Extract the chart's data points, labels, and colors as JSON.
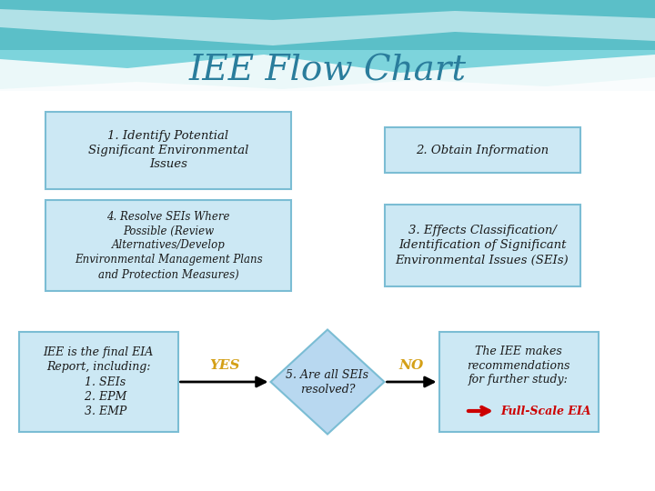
{
  "title": "IEE Flow Chart",
  "title_color": "#2a7d9c",
  "title_fontsize": 28,
  "bg_color": "#ffffff",
  "box_bg": "#cce8f4",
  "box_border": "#7bbdd4",
  "diamond_bg": "#b8d8f0",
  "diamond_border": "#7bbdd4",
  "text_color": "#1a1a1a",
  "yes_color": "#d4a017",
  "no_color": "#d4a017",
  "red_arrow_color": "#cc0000",
  "red_text_color": "#cc0000",
  "box1_text": "1. Identify Potential\nSignificant Environmental\nIssues",
  "box2_text": "2. Obtain Information",
  "box3_text": "3. Effects Classification/\nIdentification of Significant\nEnvironmental Issues (SEIs)",
  "box4_text": "4. Resolve SEIs Where\nPossible (Review\nAlternatives/Develop\nEnvironmental Management Plans\nand Protection Measures)",
  "box5_text": "5. Are all SEIs\nresolved?",
  "box_left_text": "IEE is the final EIA\nReport, including:\n    1. SEIs\n    2. EPM\n    3. EMP",
  "box_right_text": "The IEE makes\nrecommendations\nfor further study:",
  "box_right_red_text": "Full-Scale EIA",
  "yes_label": "YES",
  "no_label": "NO",
  "wave_color1": "#5bbfc8",
  "wave_color2": "#7dd4dc",
  "wave_color3": "#9ed4de"
}
